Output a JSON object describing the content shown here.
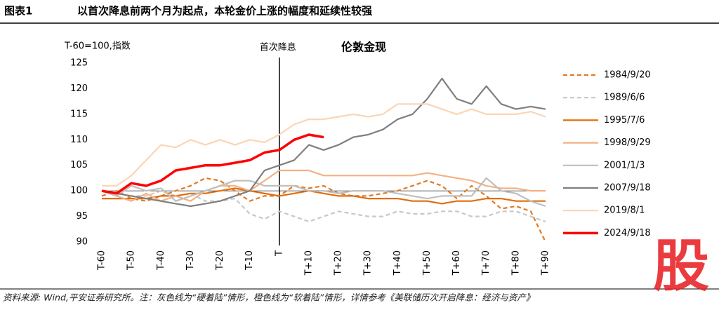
{
  "header": {
    "label": "图表1",
    "title": "以首次降息前两个月为起点，本轮金价上涨的幅度和延续性较强"
  },
  "footer": "资料来源: Wind,平安证券研究所。注：灰色线为“硬着陆”情形，橙色线为“软着陆”情形，详情参考《美联储历次开启降息：经济与资产》",
  "watermark": "股",
  "chart_data": {
    "type": "line",
    "title": "伦敦金现",
    "y_label": "T-60=100,指数",
    "annotation": "首次降息",
    "vline": 0,
    "hline": 100,
    "x": [
      -60,
      -55,
      -50,
      -45,
      -40,
      -35,
      -30,
      -25,
      -20,
      -15,
      -10,
      -5,
      0,
      5,
      10,
      15,
      20,
      25,
      30,
      35,
      40,
      45,
      50,
      55,
      60,
      65,
      70,
      75,
      80,
      85,
      90
    ],
    "xlim": [
      -60,
      90
    ],
    "xticks": [
      {
        "value": -60,
        "label": "T-60"
      },
      {
        "value": -50,
        "label": "T-50"
      },
      {
        "value": -40,
        "label": "T-40"
      },
      {
        "value": -30,
        "label": "T-30"
      },
      {
        "value": -20,
        "label": "T-20"
      },
      {
        "value": -10,
        "label": "T-10"
      },
      {
        "value": 0,
        "label": "T"
      },
      {
        "value": 10,
        "label": "T+10"
      },
      {
        "value": 20,
        "label": "T+20"
      },
      {
        "value": 30,
        "label": "T+30"
      },
      {
        "value": 40,
        "label": "T+40"
      },
      {
        "value": 50,
        "label": "T+50"
      },
      {
        "value": 60,
        "label": "T+60"
      },
      {
        "value": 70,
        "label": "T+70"
      },
      {
        "value": 80,
        "label": "T+80"
      },
      {
        "value": 90,
        "label": "T+90"
      }
    ],
    "ylim": [
      90,
      125
    ],
    "yticks": [
      90,
      95,
      100,
      105,
      110,
      115,
      120,
      125
    ],
    "grid": false,
    "legend": "right",
    "series": [
      {
        "name": "1984/9/20",
        "color": "#e07b24",
        "dash": true,
        "values": [
          99,
          100,
          98.5,
          98,
          99,
          100,
          101,
          102.5,
          102,
          100,
          98,
          99,
          99,
          101,
          100.5,
          101,
          99.5,
          99,
          99,
          99.5,
          100,
          101,
          102,
          101,
          98.5,
          101,
          99,
          96.5,
          97,
          96,
          90
        ]
      },
      {
        "name": "1989/6/6",
        "color": "#c8c8c8",
        "dash": true,
        "values": [
          100,
          99.5,
          99,
          99,
          100,
          99,
          99.5,
          98,
          98,
          98.5,
          95.5,
          94.5,
          96,
          95,
          94,
          95,
          96,
          95.5,
          95,
          95,
          96,
          95.5,
          95.5,
          96,
          96,
          95,
          95,
          96,
          96,
          95,
          94
        ]
      },
      {
        "name": "1995/7/6",
        "color": "#e36c0a",
        "dash": false,
        "values": [
          98.5,
          98.5,
          98.5,
          98.5,
          99,
          99,
          99.5,
          99.5,
          100,
          100.5,
          100,
          99.5,
          99,
          99.5,
          100,
          99.5,
          99,
          99,
          98.5,
          98.5,
          98.5,
          98,
          98,
          97.5,
          98,
          98,
          98.5,
          98.5,
          98,
          98,
          98
        ]
      },
      {
        "name": "1998/9/29",
        "color": "#f4b183",
        "dash": false,
        "values": [
          100,
          99,
          98,
          99.5,
          98,
          99,
          98,
          100,
          101,
          101,
          100,
          102,
          104,
          104,
          104,
          103,
          103,
          103,
          103,
          103,
          103,
          103,
          103.5,
          103,
          102.5,
          102,
          101,
          100.5,
          100.5,
          100,
          100
        ]
      },
      {
        "name": "2001/1/3",
        "color": "#bfbfbf",
        "dash": false,
        "values": [
          100,
          99,
          101,
          100,
          100.5,
          98,
          99,
          100,
          101,
          102,
          102,
          101,
          101,
          101,
          100,
          100,
          99.5,
          100,
          100,
          100,
          99.5,
          99,
          98.5,
          99,
          99,
          99,
          102.5,
          100,
          99.5,
          98,
          97
        ]
      },
      {
        "name": "2007/9/18",
        "color": "#7f7f7f",
        "dash": false,
        "values": [
          100,
          99.5,
          99,
          98.5,
          98,
          97.5,
          97,
          97.5,
          98,
          99,
          100,
          104,
          105,
          106,
          109,
          108,
          109,
          110.5,
          111,
          112,
          114,
          115,
          118,
          122,
          118,
          117,
          120.5,
          117,
          116,
          116.5,
          116
        ]
      },
      {
        "name": "2019/8/1",
        "color": "#fbd5b5",
        "dash": false,
        "values": [
          101,
          101,
          103,
          106,
          109,
          108.5,
          110,
          109,
          110,
          109,
          110,
          109.5,
          111,
          113,
          114,
          114,
          114.5,
          115,
          114.5,
          115,
          117,
          117,
          117,
          116,
          115,
          116,
          115,
          115,
          115,
          115.5,
          114.5
        ]
      },
      {
        "name": "2024/9/18",
        "color": "#ff0000",
        "dash": false,
        "values": [
          100,
          99.5,
          101.5,
          101,
          102,
          104,
          104.5,
          105,
          105,
          105.5,
          106,
          107.5,
          108,
          110,
          111,
          110.5,
          null,
          null,
          null,
          null,
          null,
          null,
          null,
          null,
          null,
          null,
          null,
          null,
          null,
          null,
          null
        ]
      }
    ]
  }
}
